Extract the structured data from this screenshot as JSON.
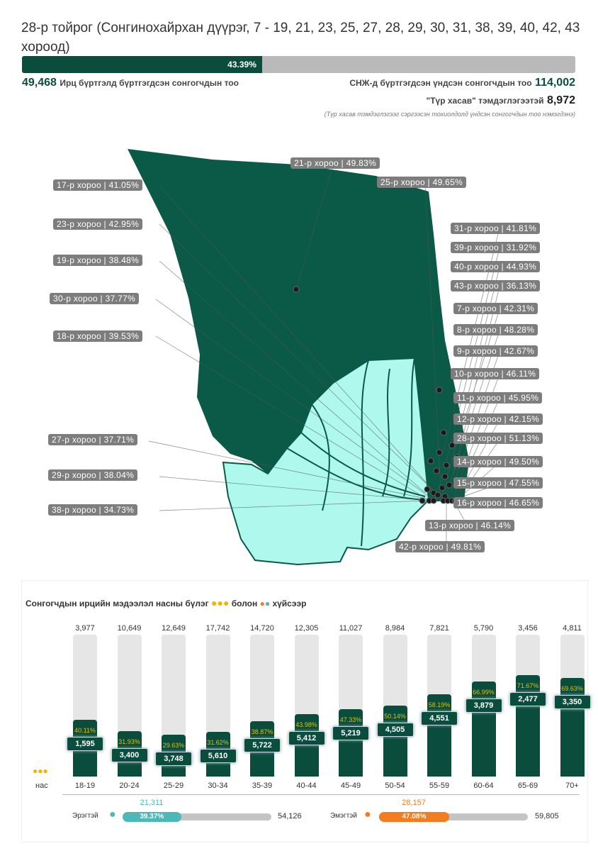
{
  "header": {
    "title": "28-р тойрог (Сонгинохайрхан дүүрэг, 7 - 19, 21, 23, 25, 27, 28, 29, 30, 31, 38, 39, 40, 42, 43 хороод)",
    "turnout_pct": 43.39,
    "turnout_label": "43.39%",
    "attended": "49,468",
    "attended_label": "Ирц бүртгэлд бүртгэгдсэн сонгогчдын тоо",
    "registered_label": "СНЖ-д бүртгэгдсэн үндсэн сонгогчдын тоо",
    "registered": "114,002",
    "temp_label": "\"Түр хасав\" тэмдэглэгээтэй",
    "temp": "8,972",
    "note": "(Түр хасав тэмдэглэгээг сэргээсэн тохиолдолд үндсэн сонгогчдын тоо нэмэгдэнэ)"
  },
  "map": {
    "colors": {
      "dark": "#0b5a48",
      "light": "#aef8ee"
    },
    "labels": [
      "21-р хороо | 49.83%",
      "25-р хороо | 49.65%",
      "17-р хороо | 41.05%",
      "23-р хороо | 42.95%",
      "19-р хороо | 38.48%",
      "30-р хороо | 37.77%",
      "18-р хороо | 39.53%",
      "31-р хороо | 41.81%",
      "39-р хороо | 31.92%",
      "40-р хороо | 44.93%",
      "43-р хороо | 36.13%",
      "7-р хороо | 42.31%",
      "8-р хороо | 48.28%",
      "9-р хороо | 42.67%",
      "10-р хороо | 46.11%",
      "11-р хороо | 45.95%",
      "12-р хороо | 42.15%",
      "28-р хороо | 51.13%",
      "14-р хороо | 49.50%",
      "15-р хороо | 47.55%",
      "16-р хороо | 46.65%",
      "13-р хороо | 46.14%",
      "27-р хороо | 37.71%",
      "29-р хороо | 38.04%",
      "38-р хороо | 34.73%",
      "42-р хороо | 49.81%"
    ]
  },
  "chart_data": {
    "type": "bar",
    "title": "Сонгогчдын ирцийн мэдээлэл насны бүлэг",
    "title_and": "болон",
    "title_by_gender": "хүйсээр",
    "xlabel": "нас",
    "categories": [
      "18-19",
      "20-24",
      "25-29",
      "30-34",
      "35-39",
      "40-44",
      "45-49",
      "50-54",
      "55-59",
      "60-64",
      "65-69",
      "70+"
    ],
    "registered": [
      "3,977",
      "10,649",
      "12,649",
      "17,742",
      "14,720",
      "12,305",
      "11,027",
      "8,984",
      "7,821",
      "5,790",
      "3,456",
      "4,811"
    ],
    "attended": [
      "1,595",
      "3,400",
      "3,748",
      "5,610",
      "5,722",
      "5,412",
      "5,219",
      "4,505",
      "4,551",
      "3,879",
      "2,477",
      "3,350"
    ],
    "percent": [
      40.11,
      31.93,
      29.63,
      31.62,
      38.87,
      43.98,
      47.33,
      50.14,
      58.19,
      66.99,
      71.67,
      69.63
    ],
    "percent_labels": [
      "40.11%",
      "31.93%",
      "29.63%",
      "31.62%",
      "38.87%",
      "43.98%",
      "47.33%",
      "50.14%",
      "58.19%",
      "66.99%",
      "71.67%",
      "69.63%"
    ],
    "ylim": [
      0,
      100
    ],
    "gender": {
      "male": {
        "label": "Эрэгтэй",
        "attended": "21,311",
        "pct": 39.37,
        "pct_label": "39.37%",
        "total": "54,126",
        "color": "#4db8b8"
      },
      "female": {
        "label": "Эмэгтэй",
        "attended": "28,157",
        "pct": 47.08,
        "pct_label": "47.08%",
        "total": "59,805",
        "color": "#f47c20"
      }
    }
  }
}
